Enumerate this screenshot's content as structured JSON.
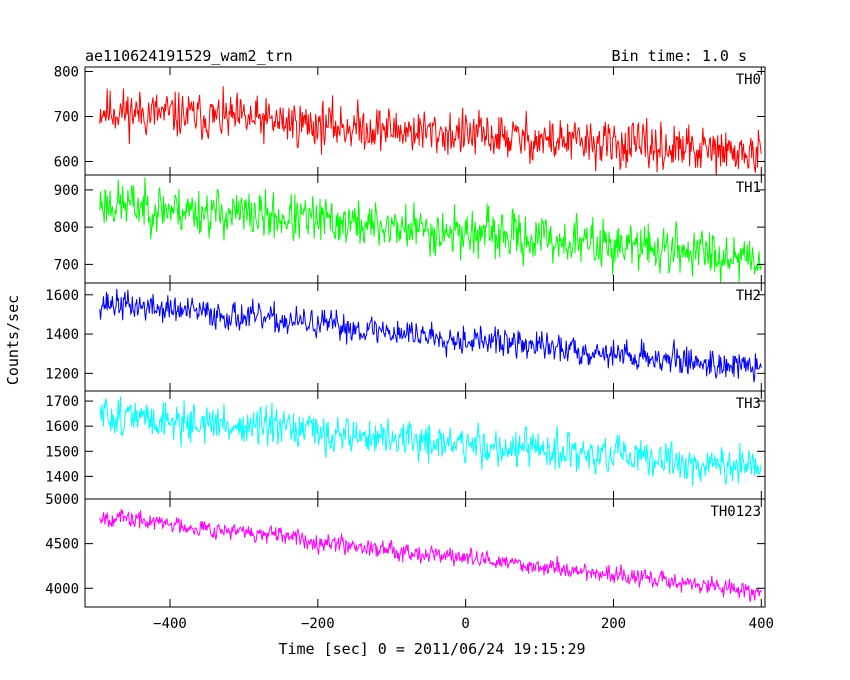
{
  "header": {
    "title": "ae110624191529_wam2_trn",
    "bin_time": "Bin time: 1.0 s"
  },
  "axes": {
    "xlabel": "Time [sec] 0 = 2011/06/24 19:15:29",
    "ylabel": "Counts/sec"
  },
  "chart_data": {
    "type": "line",
    "title": "ae110624191529_wam2_trn",
    "xlabel": "Time [sec] 0 = 2011/06/24 19:15:29",
    "ylabel": "Counts/sec",
    "xlim": [
      -515,
      405
    ],
    "x_ticks": [
      -400,
      -200,
      0,
      200,
      400
    ],
    "x_tick_labels": [
      "−400",
      "−200",
      "0",
      "200",
      "400"
    ],
    "x_range_data": [
      -495,
      400
    ],
    "bin_seconds": 1.0,
    "grid": false,
    "panels": [
      {
        "name": "TH0",
        "color": "#ff0000",
        "ylim": [
          570,
          810
        ],
        "y_ticks": [
          600,
          700,
          800
        ],
        "trend": [
          {
            "x": -495,
            "y": 715
          },
          {
            "x": 400,
            "y": 615
          }
        ],
        "noise_amplitude": 38,
        "seed": 11
      },
      {
        "name": "TH1",
        "color": "#00ff00",
        "ylim": [
          650,
          940
        ],
        "y_ticks": [
          700,
          800,
          900
        ],
        "trend": [
          {
            "x": -495,
            "y": 865
          },
          {
            "x": 400,
            "y": 720
          }
        ],
        "noise_amplitude": 48,
        "seed": 23
      },
      {
        "name": "TH2",
        "color": "#0000ff",
        "ylim": [
          1110,
          1660
        ],
        "y_ticks": [
          1200,
          1400,
          1600
        ],
        "trend": [
          {
            "x": -495,
            "y": 1560
          },
          {
            "x": 400,
            "y": 1225
          }
        ],
        "noise_amplitude": 55,
        "seed": 37
      },
      {
        "name": "TH3",
        "color": "#00ffff",
        "ylim": [
          1310,
          1740
        ],
        "y_ticks": [
          1400,
          1500,
          1600,
          1700
        ],
        "trend": [
          {
            "x": -495,
            "y": 1645
          },
          {
            "x": 400,
            "y": 1430
          }
        ],
        "noise_amplitude": 58,
        "seed": 51
      },
      {
        "name": "TH0123",
        "color": "#ff00ff",
        "ylim": [
          3790,
          5000
        ],
        "y_ticks": [
          4000,
          4500,
          5000
        ],
        "trend": [
          {
            "x": -495,
            "y": 4810
          },
          {
            "x": 400,
            "y": 3960
          }
        ],
        "noise_amplitude": 75,
        "seed": 67
      }
    ]
  }
}
